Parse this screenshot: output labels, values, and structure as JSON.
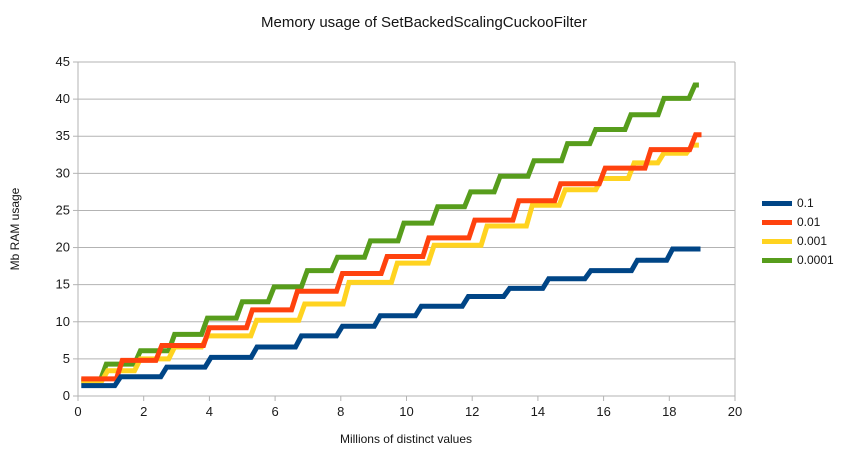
{
  "chart_data": {
    "type": "line",
    "subtype": "step",
    "title": "Memory usage of SetBackedScalingCuckooFilter",
    "xlabel": "Millions of distinct values",
    "ylabel": "Mb RAM usage",
    "xlim": [
      0,
      20
    ],
    "ylim": [
      0,
      45
    ],
    "xticks": [
      0,
      2,
      4,
      6,
      8,
      10,
      12,
      14,
      16,
      18,
      20
    ],
    "yticks": [
      0,
      5,
      10,
      15,
      20,
      25,
      30,
      35,
      40,
      45
    ],
    "grid": "horizontal-only",
    "grid_color": "#b3b3b3",
    "axis_color": "#b3b3b3",
    "tick_text_color": "#1a1a1a",
    "legend_position": "right",
    "line_width": 5,
    "series": [
      {
        "name": "0.1",
        "color": "#004586",
        "points": [
          [
            0.1,
            1.4
          ],
          [
            1.3,
            2.6
          ],
          [
            2.7,
            3.9
          ],
          [
            4.05,
            5.2
          ],
          [
            5.45,
            6.6
          ],
          [
            6.8,
            8.1
          ],
          [
            8.05,
            9.4
          ],
          [
            9.2,
            10.8
          ],
          [
            10.45,
            12.1
          ],
          [
            11.88,
            13.4
          ],
          [
            13.14,
            14.5
          ],
          [
            14.33,
            15.8
          ],
          [
            15.61,
            16.9
          ],
          [
            17.03,
            18.3
          ],
          [
            18.1,
            19.8
          ],
          [
            18.95,
            19.8
          ]
        ]
      },
      {
        "name": "0.01",
        "color": "#ff420e",
        "points": [
          [
            0.1,
            2.3
          ],
          [
            1.35,
            4.8
          ],
          [
            2.55,
            6.8
          ],
          [
            4.0,
            9.2
          ],
          [
            5.31,
            11.6
          ],
          [
            6.68,
            14.1
          ],
          [
            8.05,
            16.5
          ],
          [
            9.41,
            18.8
          ],
          [
            10.68,
            21.3
          ],
          [
            12.08,
            23.7
          ],
          [
            13.42,
            26.3
          ],
          [
            14.69,
            28.6
          ],
          [
            16.05,
            30.7
          ],
          [
            17.44,
            33.2
          ],
          [
            18.8,
            35.2
          ],
          [
            18.98,
            35.2
          ]
        ]
      },
      {
        "name": "0.001",
        "color": "#ffd320",
        "points": [
          [
            0.1,
            2.0
          ],
          [
            0.9,
            3.4
          ],
          [
            1.9,
            5.0
          ],
          [
            2.94,
            6.6
          ],
          [
            3.94,
            8.1
          ],
          [
            5.44,
            10.2
          ],
          [
            6.9,
            12.4
          ],
          [
            8.25,
            15.3
          ],
          [
            9.72,
            17.9
          ],
          [
            10.84,
            20.3
          ],
          [
            12.45,
            22.9
          ],
          [
            13.83,
            25.7
          ],
          [
            14.83,
            27.8
          ],
          [
            15.94,
            29.3
          ],
          [
            16.93,
            31.4
          ],
          [
            17.83,
            32.7
          ],
          [
            18.7,
            33.8
          ],
          [
            18.9,
            33.8
          ]
        ]
      },
      {
        "name": "0.0001",
        "color": "#579d1c",
        "points": [
          [
            0.1,
            2.1
          ],
          [
            0.86,
            4.3
          ],
          [
            1.9,
            6.1
          ],
          [
            2.94,
            8.3
          ],
          [
            3.94,
            10.5
          ],
          [
            5.0,
            12.7
          ],
          [
            5.97,
            14.7
          ],
          [
            6.98,
            16.9
          ],
          [
            7.9,
            18.7
          ],
          [
            8.9,
            20.9
          ],
          [
            9.92,
            23.3
          ],
          [
            10.95,
            25.5
          ],
          [
            11.95,
            27.5
          ],
          [
            12.85,
            29.6
          ],
          [
            13.88,
            31.7
          ],
          [
            14.9,
            34.0
          ],
          [
            15.76,
            35.9
          ],
          [
            16.83,
            37.9
          ],
          [
            17.84,
            40.1
          ],
          [
            18.78,
            41.9
          ],
          [
            18.9,
            41.9
          ]
        ]
      }
    ]
  }
}
